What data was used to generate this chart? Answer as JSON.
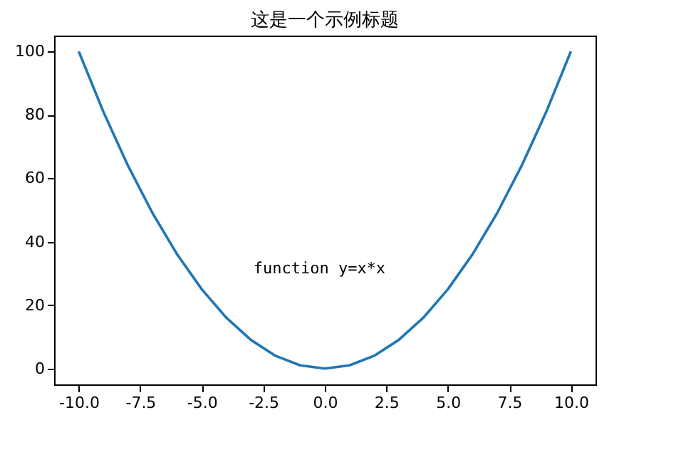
{
  "chart_data": {
    "type": "line",
    "title": "这是一个示例标题",
    "x": [
      -10,
      -9,
      -8,
      -7,
      -6,
      -5,
      -4,
      -3,
      -2,
      -1,
      0,
      1,
      2,
      3,
      4,
      5,
      6,
      7,
      8,
      9,
      10
    ],
    "series": [
      {
        "color": "#1f77b4",
        "values": [
          100,
          81,
          64,
          49,
          36,
          25,
          16,
          9,
          4,
          1,
          0,
          1,
          4,
          9,
          16,
          25,
          36,
          49,
          64,
          81,
          100
        ]
      }
    ],
    "xlim": [
      -11,
      11
    ],
    "ylim": [
      -5,
      105
    ],
    "xticks": [
      {
        "value": -10,
        "label": "-10.0"
      },
      {
        "value": -7.5,
        "label": "-7.5"
      },
      {
        "value": -5,
        "label": "-5.0"
      },
      {
        "value": -2.5,
        "label": "-2.5"
      },
      {
        "value": 0,
        "label": "0.0"
      },
      {
        "value": 2.5,
        "label": "2.5"
      },
      {
        "value": 5,
        "label": "5.0"
      },
      {
        "value": 7.5,
        "label": "7.5"
      },
      {
        "value": 10,
        "label": "10.0"
      }
    ],
    "yticks": [
      0,
      20,
      40,
      60,
      80,
      100
    ],
    "annotations": [
      "function y=x*x"
    ],
    "grid": false
  }
}
